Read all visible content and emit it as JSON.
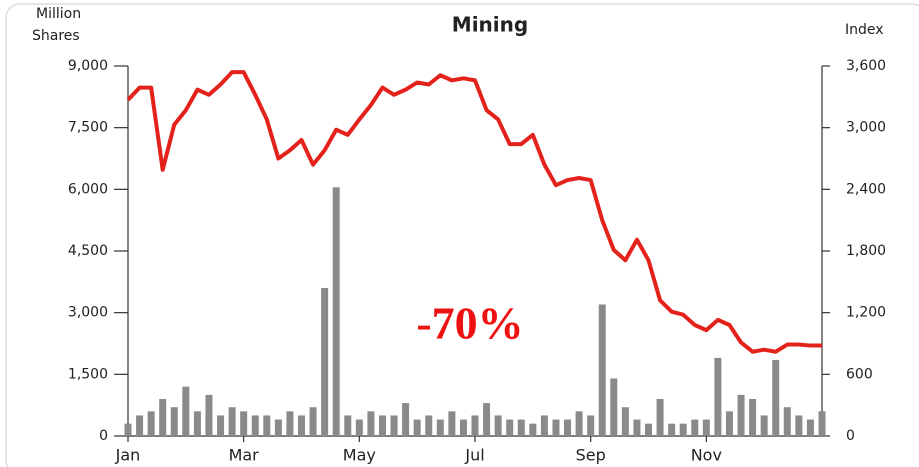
{
  "chart_data": {
    "type": "bar",
    "title": "Mining",
    "ylabel": [
      "Million",
      "Shares"
    ],
    "y2label": "Index",
    "annotation": "-70%",
    "annotation_color": "#ee1111",
    "categories": [
      "Jan",
      null,
      null,
      null,
      null,
      null,
      null,
      null,
      null,
      null,
      "Mar",
      null,
      null,
      null,
      null,
      null,
      null,
      null,
      null,
      null,
      "May",
      null,
      null,
      null,
      null,
      null,
      null,
      null,
      null,
      null,
      "Jul",
      null,
      null,
      null,
      null,
      null,
      null,
      null,
      null,
      null,
      "Sep",
      null,
      null,
      null,
      null,
      null,
      null,
      null,
      null,
      null,
      "Nov",
      null,
      null,
      null,
      null,
      null,
      null,
      null,
      null,
      null,
      null
    ],
    "series": [
      {
        "type": "bar",
        "color": "#8a8a8a",
        "values": [
          300,
          500,
          600,
          900,
          700,
          1200,
          600,
          1000,
          500,
          700,
          600,
          500,
          500,
          400,
          600,
          500,
          700,
          3600,
          6050,
          500,
          400,
          600,
          500,
          500,
          800,
          400,
          500,
          400,
          600,
          400,
          500,
          800,
          500,
          400,
          400,
          300,
          500,
          400,
          400,
          600,
          500,
          3200,
          1400,
          700,
          400,
          300,
          900,
          300,
          300,
          400,
          400,
          1900,
          600,
          1000,
          900,
          500,
          1850,
          700,
          500,
          400,
          600
        ]
      },
      {
        "type": "line",
        "axis": "y2",
        "color": "#e3231b",
        "values": [
          3270,
          3390,
          3390,
          2590,
          3030,
          3170,
          3370,
          3320,
          3420,
          3540,
          3540,
          3320,
          3080,
          2700,
          2780,
          2880,
          2640,
          2780,
          2980,
          2930,
          3080,
          3220,
          3390,
          3320,
          3370,
          3440,
          3420,
          3510,
          3460,
          3480,
          3460,
          3170,
          3080,
          2840,
          2840,
          2930,
          2640,
          2440,
          2490,
          2510,
          2490,
          2100,
          1810,
          1710,
          1910,
          1710,
          1320,
          1210,
          1180,
          1080,
          1030,
          1130,
          1080,
          910,
          820,
          840,
          820,
          890,
          890,
          880,
          880
        ]
      }
    ],
    "ylim": [
      0,
      9000
    ],
    "yticks": [
      0,
      {
        "value": 1500,
        "label": "1,500"
      },
      {
        "value": 3000,
        "label": "3,000"
      },
      {
        "value": 4500,
        "label": "4,500"
      },
      {
        "value": 6000,
        "label": "6,000"
      },
      {
        "value": 7500,
        "label": "7,500"
      },
      {
        "value": 9000,
        "label": "9,000"
      }
    ],
    "y2lim": [
      0,
      3600
    ],
    "y2ticks": [
      0,
      600,
      {
        "value": 1200,
        "label": "1,200"
      },
      {
        "value": 1800,
        "label": "1,800"
      },
      {
        "value": 2400,
        "label": "2,400"
      },
      {
        "value": 3000,
        "label": "3,000"
      },
      {
        "value": 3600,
        "label": "3,600"
      }
    ],
    "grid": false
  }
}
